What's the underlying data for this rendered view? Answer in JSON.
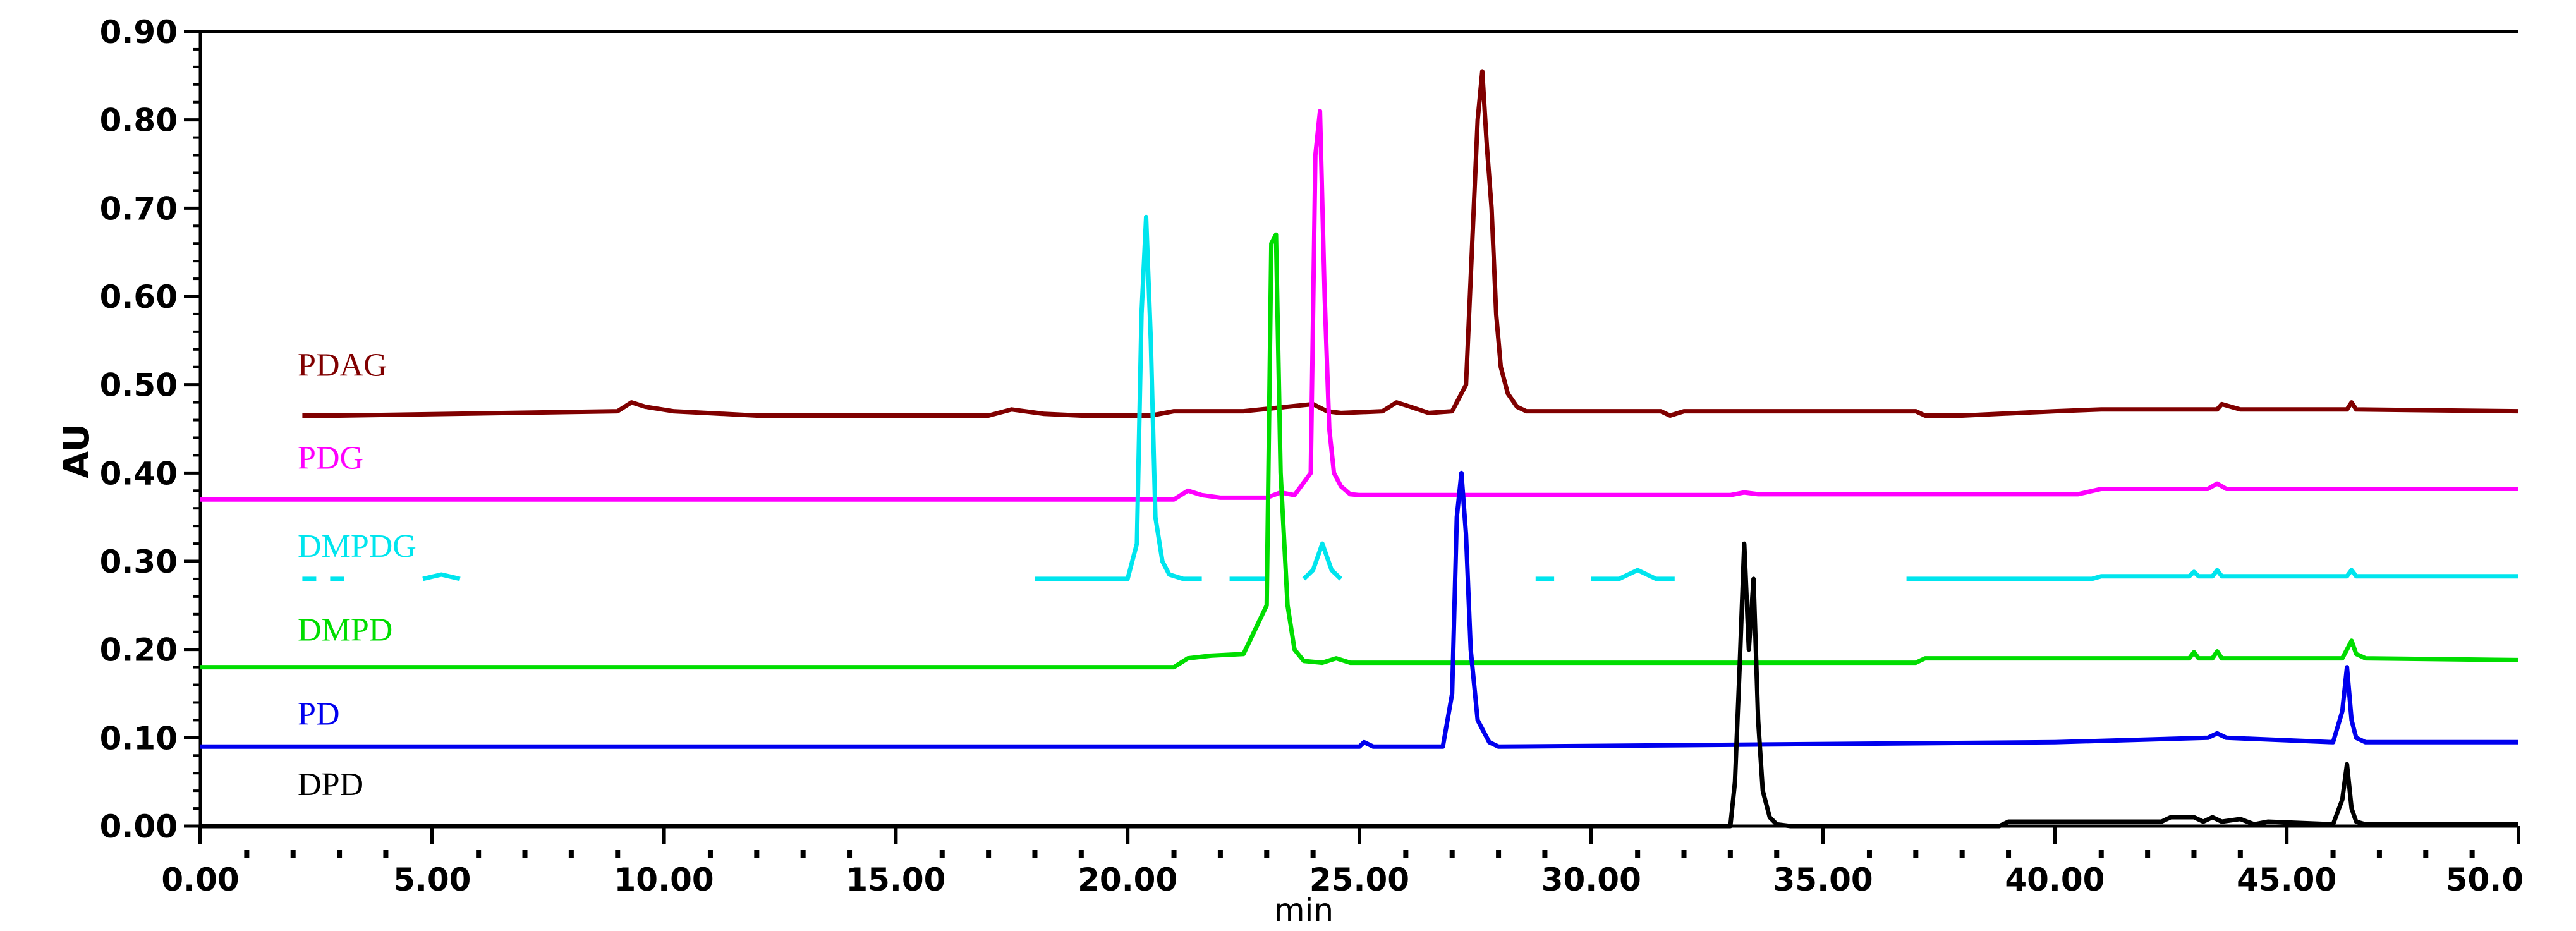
{
  "chart_data": {
    "type": "line",
    "title": "",
    "xlabel": "min",
    "ylabel": "AU",
    "xlim": [
      0,
      50
    ],
    "ylim": [
      0,
      0.9
    ],
    "x_ticks": [
      0,
      5,
      10,
      15,
      20,
      25,
      30,
      35,
      40,
      45,
      50
    ],
    "x_tick_labels": [
      "0.00",
      "5.00",
      "10.00",
      "15.00",
      "20.00",
      "25.00",
      "30.00",
      "35.00",
      "40.00",
      "45.00",
      "50.0"
    ],
    "y_ticks": [
      0,
      0.1,
      0.2,
      0.3,
      0.4,
      0.5,
      0.6,
      0.7,
      0.8,
      0.9
    ],
    "y_tick_labels": [
      "0.00",
      "0.10",
      "0.20",
      "0.30",
      "0.40",
      "0.50",
      "0.60",
      "0.70",
      "0.80",
      "0.90"
    ],
    "grid": false,
    "series": [
      {
        "name": "PDAG",
        "color": "#800000",
        "label_at": [
          2.1,
          0.51
        ],
        "x": [
          2.2,
          3,
          9.0,
          9.3,
          9.6,
          10.2,
          12,
          17.0,
          17.5,
          18.2,
          19,
          20.5,
          21,
          22.5,
          24.0,
          24.3,
          24.6,
          25.5,
          25.8,
          26.1,
          26.5,
          27.0,
          27.3,
          27.45,
          27.55,
          27.65,
          27.75,
          27.85,
          27.95,
          28.05,
          28.2,
          28.4,
          28.6,
          29,
          31.5,
          31.7,
          32,
          37.0,
          37.2,
          38,
          40,
          41,
          43.5,
          43.6,
          44,
          46.3,
          46.4,
          46.5,
          50
        ],
        "y": [
          0.465,
          0.465,
          0.47,
          0.48,
          0.475,
          0.47,
          0.465,
          0.465,
          0.472,
          0.467,
          0.465,
          0.465,
          0.47,
          0.47,
          0.478,
          0.47,
          0.468,
          0.47,
          0.48,
          0.475,
          0.468,
          0.47,
          0.5,
          0.68,
          0.8,
          0.855,
          0.77,
          0.7,
          0.58,
          0.52,
          0.49,
          0.475,
          0.47,
          0.47,
          0.47,
          0.465,
          0.47,
          0.47,
          0.465,
          0.465,
          0.47,
          0.472,
          0.472,
          0.478,
          0.472,
          0.472,
          0.48,
          0.472,
          0.47
        ]
      },
      {
        "name": "PDG",
        "color": "#ff00ff",
        "label_at": [
          2.1,
          0.405
        ],
        "x": [
          0,
          21,
          21.3,
          21.6,
          22,
          23.0,
          23.3,
          23.6,
          23.95,
          24.05,
          24.15,
          24.25,
          24.35,
          24.45,
          24.6,
          24.8,
          25,
          33,
          33.3,
          33.6,
          40.5,
          41,
          43.3,
          43.5,
          43.7,
          50
        ],
        "y": [
          0.37,
          0.37,
          0.38,
          0.375,
          0.372,
          0.372,
          0.378,
          0.375,
          0.4,
          0.76,
          0.81,
          0.6,
          0.45,
          0.4,
          0.385,
          0.376,
          0.375,
          0.375,
          0.378,
          0.376,
          0.376,
          0.382,
          0.382,
          0.388,
          0.382,
          0.382
        ]
      },
      {
        "name": "DMPDG",
        "color": "#00e5ee",
        "label_at": [
          2.1,
          0.305
        ],
        "segments": [
          {
            "x": [
              2.2,
              2.5
            ],
            "y": [
              0.28,
              0.28
            ]
          },
          {
            "x": [
              2.8,
              3.1
            ],
            "y": [
              0.28,
              0.28
            ]
          },
          {
            "x": [
              4.8,
              5.2,
              5.6
            ],
            "y": [
              0.28,
              0.285,
              0.28
            ]
          },
          {
            "x": [
              18.0,
              20.0,
              20.2,
              20.3,
              20.4,
              20.5,
              20.6,
              20.75,
              20.9,
              21.2,
              21.6
            ],
            "y": [
              0.28,
              0.28,
              0.32,
              0.58,
              0.69,
              0.55,
              0.35,
              0.3,
              0.285,
              0.28,
              0.28
            ]
          },
          {
            "x": [
              22.2,
              23.0
            ],
            "y": [
              0.28,
              0.28
            ]
          },
          {
            "x": [
              23.8,
              24.0,
              24.2,
              24.4,
              24.6
            ],
            "y": [
              0.28,
              0.29,
              0.32,
              0.29,
              0.28
            ]
          },
          {
            "x": [
              28.8,
              29.2
            ],
            "y": [
              0.28,
              0.28
            ]
          },
          {
            "x": [
              30.0,
              30.6,
              31.0,
              31.4,
              31.8
            ],
            "y": [
              0.28,
              0.28,
              0.29,
              0.28,
              0.28
            ]
          },
          {
            "x": [
              36.8,
              40.8,
              41.0,
              42.9,
              43.0,
              43.1,
              43.4,
              43.5,
              43.6,
              46.3,
              46.4,
              46.5,
              50
            ],
            "y": [
              0.28,
              0.28,
              0.283,
              0.283,
              0.288,
              0.283,
              0.283,
              0.29,
              0.283,
              0.283,
              0.29,
              0.283,
              0.283
            ]
          }
        ]
      },
      {
        "name": "DMPD",
        "color": "#00dd00",
        "label_at": [
          2.1,
          0.21
        ],
        "x": [
          0,
          21,
          21.3,
          21.8,
          22.5,
          23.0,
          23.1,
          23.2,
          23.3,
          23.45,
          23.6,
          23.8,
          24.2,
          24.5,
          24.8,
          25,
          37,
          37.2,
          41,
          42.9,
          43.0,
          43.1,
          43.4,
          43.5,
          43.6,
          46.2,
          46.3,
          46.4,
          46.5,
          46.7,
          50
        ],
        "y": [
          0.18,
          0.18,
          0.19,
          0.193,
          0.195,
          0.25,
          0.66,
          0.67,
          0.4,
          0.25,
          0.2,
          0.187,
          0.185,
          0.19,
          0.185,
          0.185,
          0.185,
          0.19,
          0.19,
          0.19,
          0.197,
          0.19,
          0.19,
          0.198,
          0.19,
          0.19,
          0.2,
          0.21,
          0.195,
          0.19,
          0.188
        ]
      },
      {
        "name": "PD",
        "color": "#0000ee",
        "label_at": [
          2.1,
          0.115
        ],
        "x": [
          0,
          25,
          25.1,
          25.3,
          26.8,
          27.0,
          27.1,
          27.2,
          27.3,
          27.4,
          27.55,
          27.8,
          28,
          40,
          43.3,
          43.5,
          43.7,
          46.0,
          46.2,
          46.3,
          46.4,
          46.5,
          46.7,
          50
        ],
        "y": [
          0.09,
          0.09,
          0.095,
          0.09,
          0.09,
          0.15,
          0.35,
          0.4,
          0.33,
          0.2,
          0.12,
          0.095,
          0.09,
          0.095,
          0.1,
          0.105,
          0.1,
          0.095,
          0.13,
          0.18,
          0.12,
          0.1,
          0.095,
          0.095
        ]
      },
      {
        "name": "DPD",
        "color": "#000000",
        "label_at": [
          2.1,
          0.035
        ],
        "x": [
          0,
          33.0,
          33.1,
          33.2,
          33.3,
          33.4,
          33.5,
          33.6,
          33.7,
          33.85,
          34.0,
          34.3,
          38.8,
          39.0,
          42.3,
          42.5,
          43.0,
          43.2,
          43.4,
          43.6,
          44.0,
          44.3,
          44.6,
          46.0,
          46.2,
          46.3,
          46.4,
          46.5,
          46.7,
          50
        ],
        "y": [
          0,
          0,
          0.05,
          0.18,
          0.32,
          0.2,
          0.28,
          0.12,
          0.04,
          0.01,
          0.002,
          0,
          0,
          0.005,
          0.005,
          0.01,
          0.01,
          0.005,
          0.01,
          0.005,
          0.008,
          0.002,
          0.005,
          0.002,
          0.03,
          0.07,
          0.02,
          0.005,
          0.002,
          0.002
        ]
      }
    ]
  }
}
